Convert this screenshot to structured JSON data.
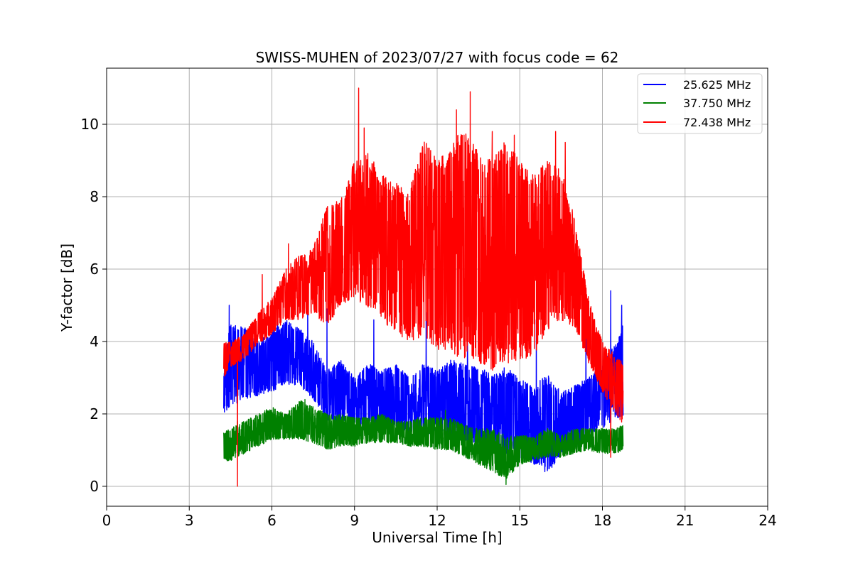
{
  "chart_data": {
    "type": "line",
    "title": "SWISS-MUHEN of 2023/07/27 with focus code = 62",
    "xlabel": "Universal Time [h]",
    "ylabel": "Y-factor [dB]",
    "xlim": [
      0,
      24
    ],
    "ylim": [
      -0.55,
      11.55
    ],
    "xticks": [
      0,
      3,
      6,
      9,
      12,
      15,
      18,
      21,
      24
    ],
    "yticks": [
      0,
      2,
      4,
      6,
      8,
      10
    ],
    "grid": true,
    "legend_position": "top-right",
    "series": [
      {
        "name": "25.625 MHz",
        "color": "#0000ff",
        "x": [
          4.25,
          4.5,
          5.0,
          5.5,
          6.0,
          6.5,
          7.0,
          7.5,
          8.0,
          8.5,
          9.0,
          9.5,
          10.0,
          10.5,
          11.0,
          11.5,
          12.0,
          12.5,
          13.0,
          13.5,
          14.0,
          14.5,
          15.0,
          15.5,
          16.0,
          16.5,
          17.0,
          17.5,
          18.0,
          18.5,
          18.75
        ],
        "low": [
          2.0,
          2.2,
          2.4,
          2.5,
          2.6,
          2.8,
          2.8,
          2.4,
          1.8,
          1.7,
          1.6,
          1.6,
          1.6,
          1.6,
          1.5,
          1.5,
          1.4,
          1.3,
          1.2,
          1.1,
          1.0,
          0.9,
          0.8,
          0.6,
          0.3,
          0.9,
          1.0,
          1.4,
          1.6,
          1.8,
          1.9
        ],
        "high": [
          3.5,
          4.5,
          4.4,
          4.0,
          4.3,
          4.6,
          4.4,
          4.0,
          3.2,
          3.5,
          3.0,
          3.4,
          3.2,
          3.4,
          3.0,
          3.4,
          3.2,
          3.5,
          3.4,
          3.3,
          3.1,
          3.3,
          3.0,
          2.8,
          3.1,
          2.6,
          2.8,
          3.0,
          3.4,
          4.0,
          4.5
        ],
        "spikes": [
          [
            4.45,
            5.0
          ],
          [
            6.2,
            5.2
          ],
          [
            7.3,
            5.1
          ],
          [
            8.0,
            4.9
          ],
          [
            9.7,
            4.6
          ],
          [
            11.6,
            4.8
          ],
          [
            13.1,
            4.0
          ],
          [
            15.6,
            4.6
          ],
          [
            17.4,
            4.2
          ],
          [
            18.3,
            5.4
          ],
          [
            18.7,
            5.0
          ]
        ]
      },
      {
        "name": "37.750 MHz",
        "color": "#008000",
        "x": [
          4.25,
          4.5,
          5.0,
          5.5,
          6.0,
          6.5,
          7.0,
          7.5,
          8.0,
          8.5,
          9.0,
          9.5,
          10.0,
          10.5,
          11.0,
          11.5,
          12.0,
          12.5,
          13.0,
          13.5,
          14.0,
          14.5,
          15.0,
          15.5,
          16.0,
          16.5,
          17.0,
          17.5,
          18.0,
          18.5,
          18.75
        ],
        "low": [
          0.7,
          0.7,
          0.9,
          1.1,
          1.3,
          1.3,
          1.3,
          1.2,
          1.0,
          1.1,
          1.1,
          1.2,
          1.2,
          1.2,
          1.1,
          1.1,
          1.0,
          1.0,
          0.8,
          0.6,
          0.4,
          0.2,
          0.6,
          0.7,
          0.8,
          0.8,
          0.9,
          1.0,
          0.9,
          0.9,
          1.0
        ],
        "high": [
          1.5,
          1.6,
          1.8,
          2.0,
          2.2,
          2.0,
          2.4,
          2.2,
          2.0,
          2.0,
          1.9,
          1.9,
          2.0,
          1.8,
          1.8,
          1.9,
          1.9,
          1.9,
          1.7,
          1.6,
          1.6,
          1.4,
          1.4,
          1.4,
          1.6,
          1.4,
          1.6,
          1.6,
          1.6,
          1.6,
          1.7
        ],
        "spikes": [
          [
            4.75,
            1.8
          ],
          [
            7.2,
            2.4
          ],
          [
            11.3,
            1.9
          ],
          [
            12.3,
            2.1
          ],
          [
            14.5,
            0.05
          ]
        ]
      },
      {
        "name": "72.438 MHz",
        "color": "#ff0000",
        "x": [
          4.25,
          4.5,
          5.0,
          5.5,
          6.0,
          6.5,
          7.0,
          7.5,
          8.0,
          8.5,
          9.0,
          9.5,
          10.0,
          10.5,
          11.0,
          11.5,
          12.0,
          12.5,
          13.0,
          13.5,
          14.0,
          14.5,
          15.0,
          15.5,
          16.0,
          16.5,
          17.0,
          17.5,
          18.0,
          18.5,
          18.75
        ],
        "low": [
          3.0,
          3.3,
          3.5,
          3.9,
          4.2,
          4.6,
          4.6,
          4.8,
          4.4,
          5.0,
          5.2,
          4.9,
          4.6,
          4.2,
          4.0,
          4.1,
          3.8,
          3.5,
          3.5,
          3.4,
          3.2,
          3.4,
          3.4,
          3.6,
          4.3,
          4.6,
          4.4,
          3.4,
          2.6,
          2.0,
          1.6
        ],
        "high": [
          4.0,
          4.0,
          4.2,
          4.8,
          5.2,
          6.0,
          6.4,
          6.6,
          7.8,
          7.9,
          9.0,
          9.2,
          8.6,
          8.4,
          8.2,
          9.6,
          9.0,
          9.4,
          10.0,
          9.2,
          9.0,
          9.6,
          9.0,
          8.6,
          9.0,
          8.8,
          7.4,
          5.2,
          4.0,
          3.6,
          3.4
        ],
        "spikes": [
          [
            4.75,
            0.0
          ],
          [
            5.65,
            5.85
          ],
          [
            6.6,
            6.7
          ],
          [
            9.15,
            11.0
          ],
          [
            9.35,
            9.9
          ],
          [
            11.9,
            8.9
          ],
          [
            12.7,
            10.4
          ],
          [
            13.2,
            10.9
          ],
          [
            14.0,
            9.8
          ],
          [
            14.8,
            9.7
          ],
          [
            16.3,
            9.8
          ],
          [
            16.65,
            9.5
          ],
          [
            18.3,
            0.8
          ]
        ]
      }
    ]
  }
}
